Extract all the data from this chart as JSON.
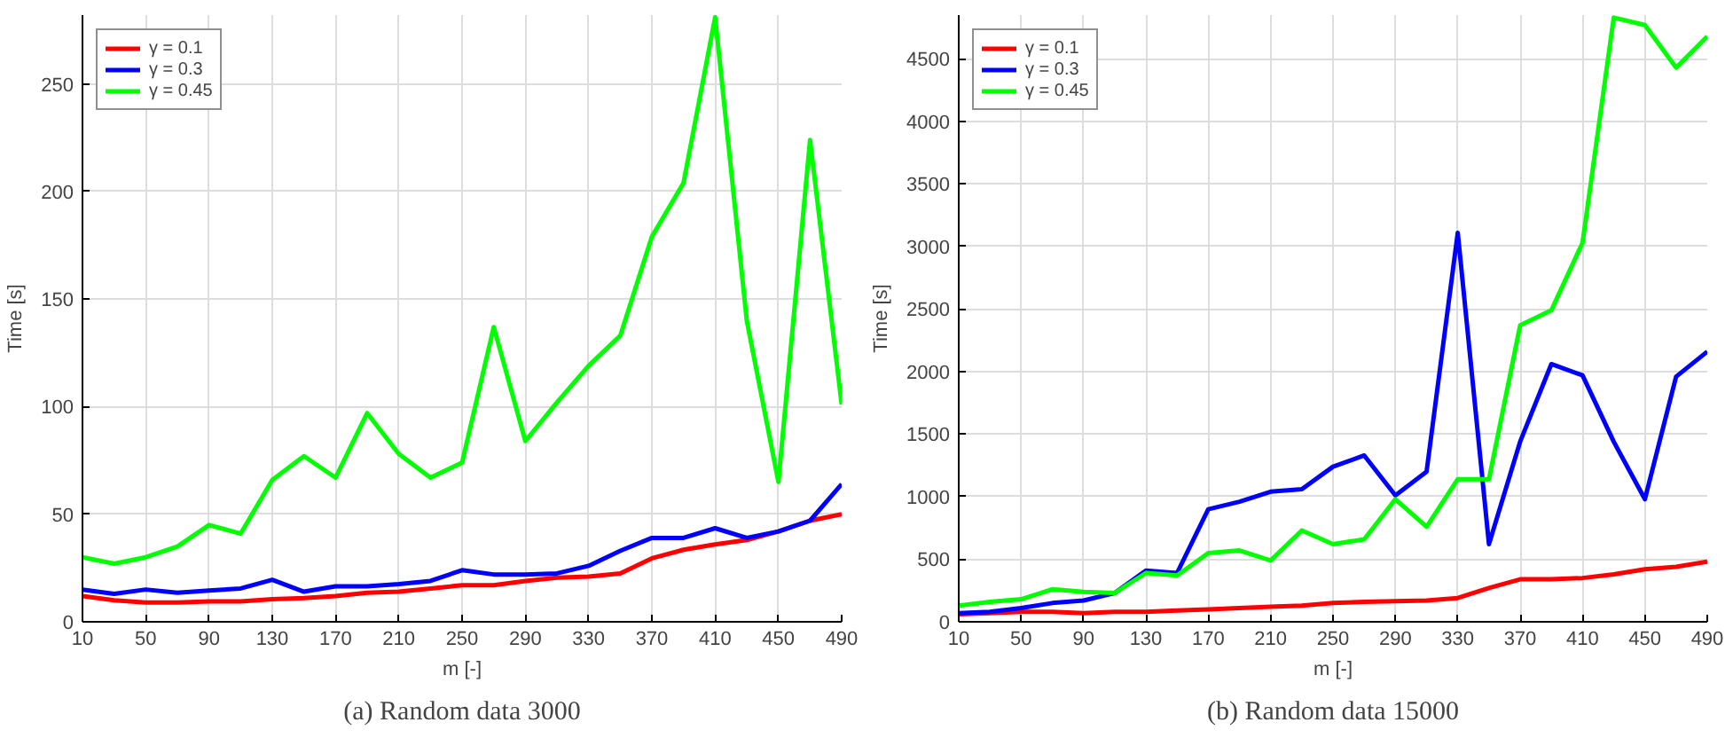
{
  "chart_data": [
    {
      "type": "line",
      "title": "(a) Random data 3000",
      "xlabel": "m [-]",
      "ylabel": "Time [s]",
      "x": [
        10,
        30,
        50,
        70,
        90,
        110,
        130,
        150,
        170,
        190,
        210,
        230,
        250,
        270,
        290,
        310,
        330,
        350,
        370,
        390,
        410,
        430,
        450,
        470,
        490
      ],
      "series": [
        {
          "name": "γ = 0.1",
          "color": "#ff0000",
          "values": [
            12,
            10,
            9,
            9,
            9.5,
            9.5,
            10.5,
            11,
            12,
            13.5,
            14,
            15.5,
            17,
            17,
            19,
            20.5,
            21,
            22.5,
            29.5,
            33.5,
            36,
            38,
            42,
            47,
            50
          ]
        },
        {
          "name": "γ = 0.3",
          "color": "#0000ff",
          "values": [
            15,
            13,
            15,
            13.5,
            14.5,
            15.5,
            19.5,
            14,
            16.5,
            16.5,
            17.5,
            19,
            24,
            22,
            22,
            22.5,
            26,
            33,
            39,
            39,
            43.5,
            39,
            42,
            47,
            64
          ]
        },
        {
          "name": "γ = 0.45",
          "color": "#00ff00",
          "values": [
            30,
            27,
            30,
            35,
            45,
            41,
            66,
            77,
            67,
            97,
            78,
            67,
            74,
            137,
            84,
            102,
            119,
            133,
            179,
            204,
            281,
            140,
            65,
            224,
            101
          ]
        }
      ],
      "xlim": [
        10,
        490
      ],
      "ylim": [
        0,
        282
      ],
      "xticks": [
        10,
        50,
        90,
        130,
        170,
        210,
        250,
        290,
        330,
        370,
        410,
        450,
        490
      ],
      "yticks": [
        0,
        50,
        100,
        150,
        200,
        250
      ],
      "grid": true,
      "legend": "top left",
      "marker": "none",
      "line_style": "solid"
    },
    {
      "type": "line",
      "title": "(b) Random data 15000",
      "xlabel": "m [-]",
      "ylabel": "Time [s]",
      "x": [
        10,
        30,
        50,
        70,
        90,
        110,
        130,
        150,
        170,
        190,
        210,
        230,
        250,
        270,
        290,
        310,
        330,
        350,
        370,
        390,
        410,
        430,
        450,
        470,
        490
      ],
      "series": [
        {
          "name": "γ = 0.1",
          "color": "#ff0000",
          "values": [
            60,
            70,
            80,
            80,
            70,
            80,
            80,
            90,
            100,
            110,
            120,
            130,
            150,
            160,
            165,
            170,
            190,
            270,
            340,
            340,
            350,
            380,
            420,
            440,
            480
          ]
        },
        {
          "name": "γ = 0.3",
          "color": "#0000ff",
          "values": [
            70,
            80,
            110,
            150,
            170,
            230,
            410,
            390,
            900,
            960,
            1040,
            1060,
            1240,
            1330,
            1010,
            1200,
            3110,
            620,
            1440,
            2060,
            1970,
            1440,
            980,
            1960,
            2160
          ]
        },
        {
          "name": "γ = 0.45",
          "color": "#00ff00",
          "values": [
            130,
            160,
            180,
            260,
            240,
            230,
            390,
            370,
            550,
            570,
            490,
            730,
            620,
            660,
            980,
            760,
            1140,
            1140,
            2370,
            2490,
            3030,
            4830,
            4770,
            4430,
            4680
          ]
        }
      ],
      "xlim": [
        10,
        490
      ],
      "ylim": [
        0,
        4850
      ],
      "xticks": [
        10,
        50,
        90,
        130,
        170,
        210,
        250,
        290,
        330,
        370,
        410,
        450,
        490
      ],
      "yticks": [
        0,
        500,
        1000,
        1500,
        2000,
        2500,
        3000,
        3500,
        4000,
        4500
      ],
      "grid": true,
      "legend": "top left",
      "marker": "none",
      "line_style": "solid"
    }
  ]
}
